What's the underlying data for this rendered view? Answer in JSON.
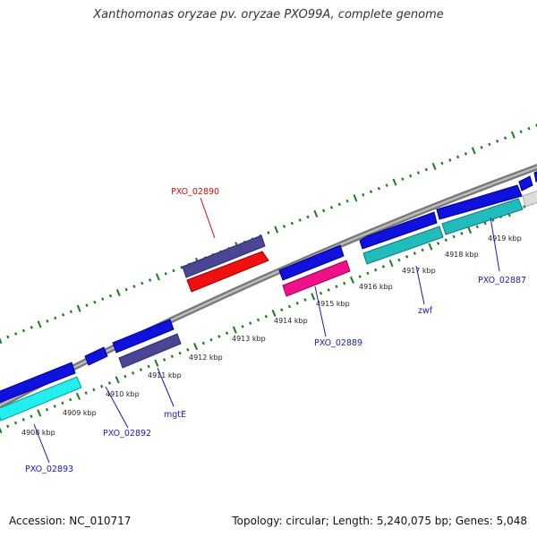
{
  "title": "Xanthomonas oryzae pv. oryzae PXO99A, complete genome",
  "footer": {
    "accession": "Accession: NC_010717",
    "summary": "Topology: circular; Length: 5,240,075 bp; Genes: 5,048"
  },
  "colors": {
    "backbone": "#8c8c8c",
    "tick": "#1f7a1f",
    "label_blue": "#1a1ab8",
    "label_red": "#cc1111"
  },
  "kbp_labels": [
    "4908 kbp",
    "4909 kbp",
    "4910 kbp",
    "4911 kbp",
    "4912 kbp",
    "4913 kbp",
    "4914 kbp",
    "4915 kbp",
    "4916 kbp",
    "4917 kbp",
    "4918 kbp",
    "4919 kbp"
  ],
  "gene_labels": {
    "pxo_02890": "PXO_02890",
    "pxo_02889": "PXO_02889",
    "pxo_02887": "PXO_02887",
    "zwf": "zwf",
    "mgtE": "mgtE",
    "pxo_02892": "PXO_02892",
    "pxo_02893": "PXO_02893"
  }
}
